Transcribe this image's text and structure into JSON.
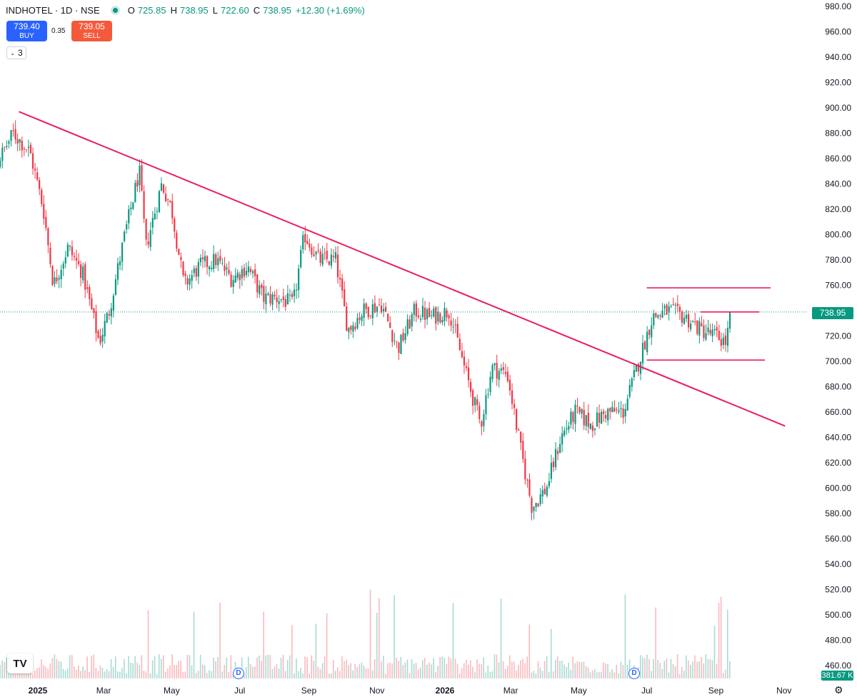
{
  "header": {
    "symbol": "INDHOTEL · 1D · NSE",
    "open_label": "O",
    "open": "725.85",
    "high_label": "H",
    "high": "738.95",
    "low_label": "L",
    "low": "722.60",
    "close_label": "C",
    "close": "738.95",
    "change": "+12.30 (+1.69%)"
  },
  "trade": {
    "buy_price": "739.40",
    "buy_label": "BUY",
    "sell_price": "739.05",
    "sell_label": "SELL",
    "spread": "0.35"
  },
  "indicators_count": "3",
  "last_price_tag": "738.95",
  "volume_tag": "381.67 K",
  "logo_text": "TV",
  "dividend_marker": "D",
  "colors": {
    "up": "#089981",
    "down": "#f23645",
    "trendline": "#e91e63"
  },
  "icons": [
    "chevron-down-icon",
    "tradingview-logo-icon",
    "settings-icon",
    "dividend-icon"
  ],
  "chart_data": {
    "type": "candlestick",
    "symbol": "INDHOTEL",
    "interval": "1D",
    "y_ticks": [
      460,
      480,
      500,
      520,
      540,
      560,
      580,
      600,
      620,
      640,
      660,
      680,
      700,
      720,
      740,
      760,
      780,
      800,
      820,
      840,
      860,
      880,
      900,
      920,
      940,
      960,
      980
    ],
    "y_tick_labels": [
      "460.00",
      "480.00",
      "500.00",
      "520.00",
      "540.00",
      "560.00",
      "580.00",
      "600.00",
      "620.00",
      "640.00",
      "660.00",
      "680.00",
      "700.00",
      "720.00",
      "740.00",
      "760.00",
      "780.00",
      "800.00",
      "820.00",
      "840.00",
      "860.00",
      "880.00",
      "900.00",
      "920.00",
      "940.00",
      "960.00",
      "980.00"
    ],
    "x_tick_labels": [
      "2025",
      "Mar",
      "May",
      "Jul",
      "Sep",
      "Nov",
      "2026",
      "Mar",
      "May",
      "Jul",
      "Sep",
      "Nov"
    ],
    "ylim": [
      455,
      982
    ],
    "price_path": [
      [
        "2024-10-28",
        780
      ],
      [
        "2024-11-15",
        840
      ],
      [
        "2024-12-10",
        880
      ],
      [
        "2024-12-25",
        865
      ],
      [
        "2025-01-06",
        820
      ],
      [
        "2025-01-15",
        760
      ],
      [
        "2025-01-28",
        790
      ],
      [
        "2025-02-10",
        770
      ],
      [
        "2025-02-25",
        715
      ],
      [
        "2025-03-06",
        740
      ],
      [
        "2025-03-20",
        800
      ],
      [
        "2025-04-02",
        850
      ],
      [
        "2025-04-08",
        790
      ],
      [
        "2025-04-22",
        840
      ],
      [
        "2025-05-01",
        820
      ],
      [
        "2025-05-12",
        760
      ],
      [
        "2025-05-26",
        775
      ],
      [
        "2025-06-10",
        780
      ],
      [
        "2025-06-24",
        765
      ],
      [
        "2025-07-08",
        775
      ],
      [
        "2025-07-22",
        750
      ],
      [
        "2025-08-05",
        750
      ],
      [
        "2025-08-18",
        745
      ],
      [
        "2025-08-28",
        800
      ],
      [
        "2025-09-10",
        780
      ],
      [
        "2025-09-25",
        780
      ],
      [
        "2025-10-06",
        725
      ],
      [
        "2025-10-20",
        740
      ],
      [
        "2025-11-05",
        745
      ],
      [
        "2025-11-20",
        710
      ],
      [
        "2025-12-05",
        740
      ],
      [
        "2025-12-20",
        735
      ],
      [
        "2026-01-05",
        740
      ],
      [
        "2026-01-20",
        690
      ],
      [
        "2026-02-02",
        650
      ],
      [
        "2026-02-12",
        695
      ],
      [
        "2026-02-26",
        690
      ],
      [
        "2026-03-10",
        630
      ],
      [
        "2026-03-20",
        585
      ],
      [
        "2026-04-02",
        600
      ],
      [
        "2026-04-15",
        640
      ],
      [
        "2026-04-28",
        660
      ],
      [
        "2026-05-12",
        650
      ],
      [
        "2026-05-26",
        660
      ],
      [
        "2026-06-10",
        660
      ],
      [
        "2026-06-24",
        700
      ],
      [
        "2026-07-06",
        735
      ],
      [
        "2026-07-20",
        740
      ],
      [
        "2026-08-04",
        735
      ],
      [
        "2026-08-18",
        725
      ],
      [
        "2026-09-01",
        720
      ],
      [
        "2026-09-10",
        715
      ],
      [
        "2026-09-15",
        738.95
      ]
    ],
    "ohlc_last": {
      "open": 725.85,
      "high": 738.95,
      "low": 722.6,
      "close": 738.95,
      "change": 12.3,
      "change_pct": 1.69
    },
    "trendlines": [
      {
        "name": "descending-trendline",
        "from": [
          "2024-12-15",
          897
        ],
        "to": [
          "2026-11-02",
          649
        ]
      },
      {
        "name": "range-resistance",
        "from": [
          "2026-07-01",
          758
        ],
        "to": [
          "2026-10-20",
          758
        ]
      },
      {
        "name": "range-upper",
        "from": [
          "2026-08-18",
          739
        ],
        "to": [
          "2026-10-10",
          739
        ]
      },
      {
        "name": "range-support",
        "from": [
          "2026-07-01",
          701
        ],
        "to": [
          "2026-10-15",
          701
        ]
      }
    ],
    "dividend_dates": [
      "2025-06-30",
      "2026-06-30"
    ],
    "volume_last": "381.67 K",
    "grid": false
  }
}
